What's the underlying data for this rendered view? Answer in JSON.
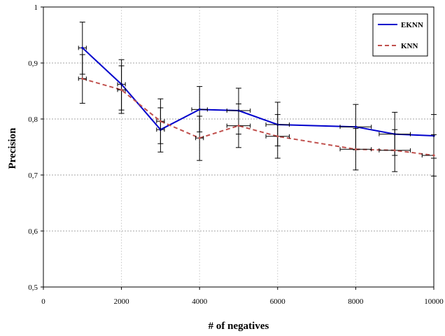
{
  "chart_data": {
    "type": "line",
    "xlabel": "# of negatives",
    "ylabel": "Precision",
    "xlim": [
      0,
      10000
    ],
    "ylim": [
      0.5,
      1.0
    ],
    "xticks": [
      0,
      2000,
      4000,
      6000,
      8000,
      10000
    ],
    "xtick_labels": [
      "0",
      "2000",
      "4000",
      "6000",
      "8000",
      "10000"
    ],
    "yticks": [
      0.5,
      0.6,
      0.7,
      0.8,
      0.9,
      1.0
    ],
    "ytick_labels": [
      "0,5",
      "0,6",
      "0,7",
      "0,8",
      "0,9",
      "1"
    ],
    "grid": "horizontal",
    "legend_position": "top-right",
    "series": [
      {
        "name": "EKNN",
        "color": "#0000cc",
        "dash": "solid",
        "points": [
          {
            "x": 1000,
            "y": 0.927,
            "ylo": 0.88,
            "yhi": 0.973,
            "xerr": 100
          },
          {
            "x": 2000,
            "y": 0.862,
            "ylo": 0.816,
            "yhi": 0.906,
            "xerr": 100
          },
          {
            "x": 3000,
            "y": 0.781,
            "ylo": 0.741,
            "yhi": 0.82,
            "xerr": 100
          },
          {
            "x": 4000,
            "y": 0.817,
            "ylo": 0.777,
            "yhi": 0.858,
            "xerr": 200
          },
          {
            "x": 5000,
            "y": 0.815,
            "ylo": 0.773,
            "yhi": 0.855,
            "xerr": 300
          },
          {
            "x": 6000,
            "y": 0.79,
            "ylo": 0.752,
            "yhi": 0.83,
            "xerr": 300
          },
          {
            "x": 8000,
            "y": 0.786,
            "ylo": 0.745,
            "yhi": 0.826,
            "xerr": 400
          },
          {
            "x": 9000,
            "y": 0.773,
            "ylo": 0.735,
            "yhi": 0.812,
            "xerr": 400
          },
          {
            "x": 10000,
            "y": 0.77,
            "ylo": 0.73,
            "yhi": 0.808,
            "xerr": 0
          }
        ]
      },
      {
        "name": "KNN",
        "color": "#c0504d",
        "dash": "dashed",
        "points": [
          {
            "x": 1000,
            "y": 0.872,
            "ylo": 0.828,
            "yhi": 0.915,
            "xerr": 100
          },
          {
            "x": 2000,
            "y": 0.852,
            "ylo": 0.81,
            "yhi": 0.895,
            "xerr": 100
          },
          {
            "x": 3000,
            "y": 0.796,
            "ylo": 0.756,
            "yhi": 0.836,
            "xerr": 100
          },
          {
            "x": 4000,
            "y": 0.766,
            "ylo": 0.726,
            "yhi": 0.805,
            "xerr": 100
          },
          {
            "x": 5000,
            "y": 0.788,
            "ylo": 0.749,
            "yhi": 0.827,
            "xerr": 300
          },
          {
            "x": 6000,
            "y": 0.769,
            "ylo": 0.73,
            "yhi": 0.808,
            "xerr": 300
          },
          {
            "x": 8000,
            "y": 0.746,
            "ylo": 0.709,
            "yhi": 0.783,
            "xerr": 400
          },
          {
            "x": 9000,
            "y": 0.744,
            "ylo": 0.706,
            "yhi": 0.781,
            "xerr": 400
          },
          {
            "x": 10000,
            "y": 0.735,
            "ylo": 0.698,
            "yhi": 0.772,
            "xerr": 300
          }
        ]
      }
    ]
  }
}
